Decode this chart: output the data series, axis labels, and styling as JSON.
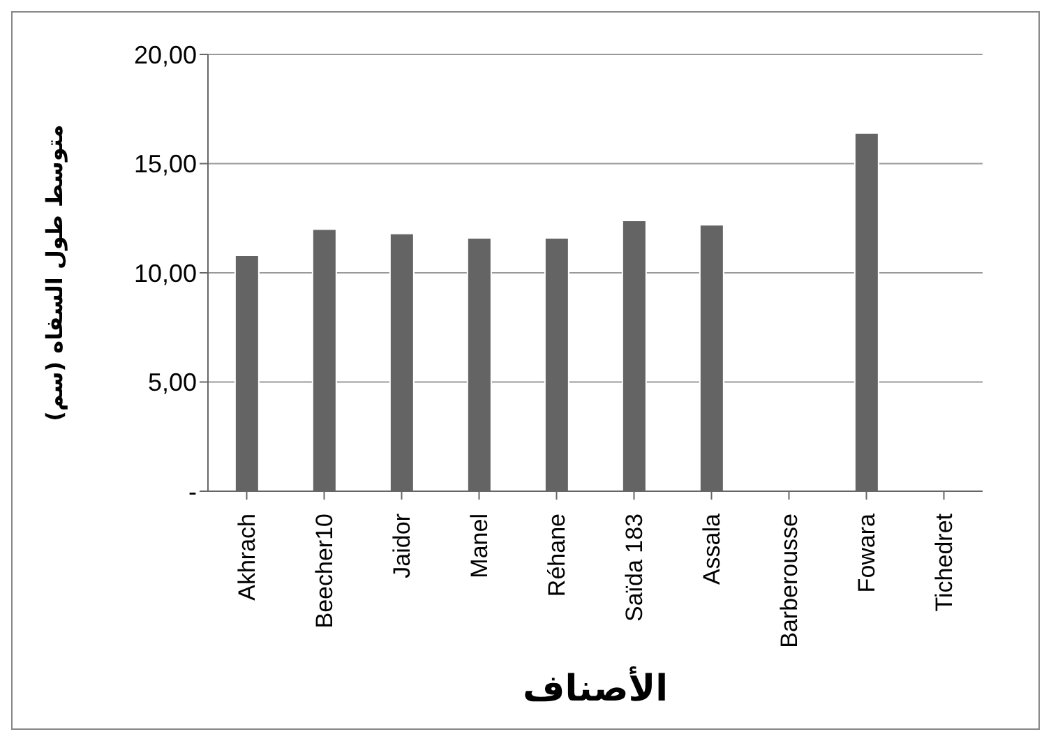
{
  "chart_data": {
    "type": "bar",
    "xlabel": "الأصناف",
    "ylabel": "متوسط طول السفاه (سم)",
    "categories": [
      "Akhrach",
      "Beecher10",
      "Jaidor",
      "Manel",
      "Réhane",
      "Saïda 183",
      "Assala",
      "Barberousse",
      "Fowara",
      "Tichedret"
    ],
    "values": [
      10.8,
      12,
      11.8,
      11.6,
      11.6,
      12.4,
      12.2,
      0,
      16.4,
      0
    ],
    "color": "#646464",
    "ylim": [
      0,
      20
    ],
    "yticks": [
      {
        "value": 0,
        "label": "-"
      },
      {
        "value": 5,
        "label": "5,00"
      },
      {
        "value": 10,
        "label": "10,00"
      },
      {
        "value": 15,
        "label": "15,00"
      },
      {
        "value": 20,
        "label": "20,00"
      }
    ],
    "grid": "y"
  }
}
